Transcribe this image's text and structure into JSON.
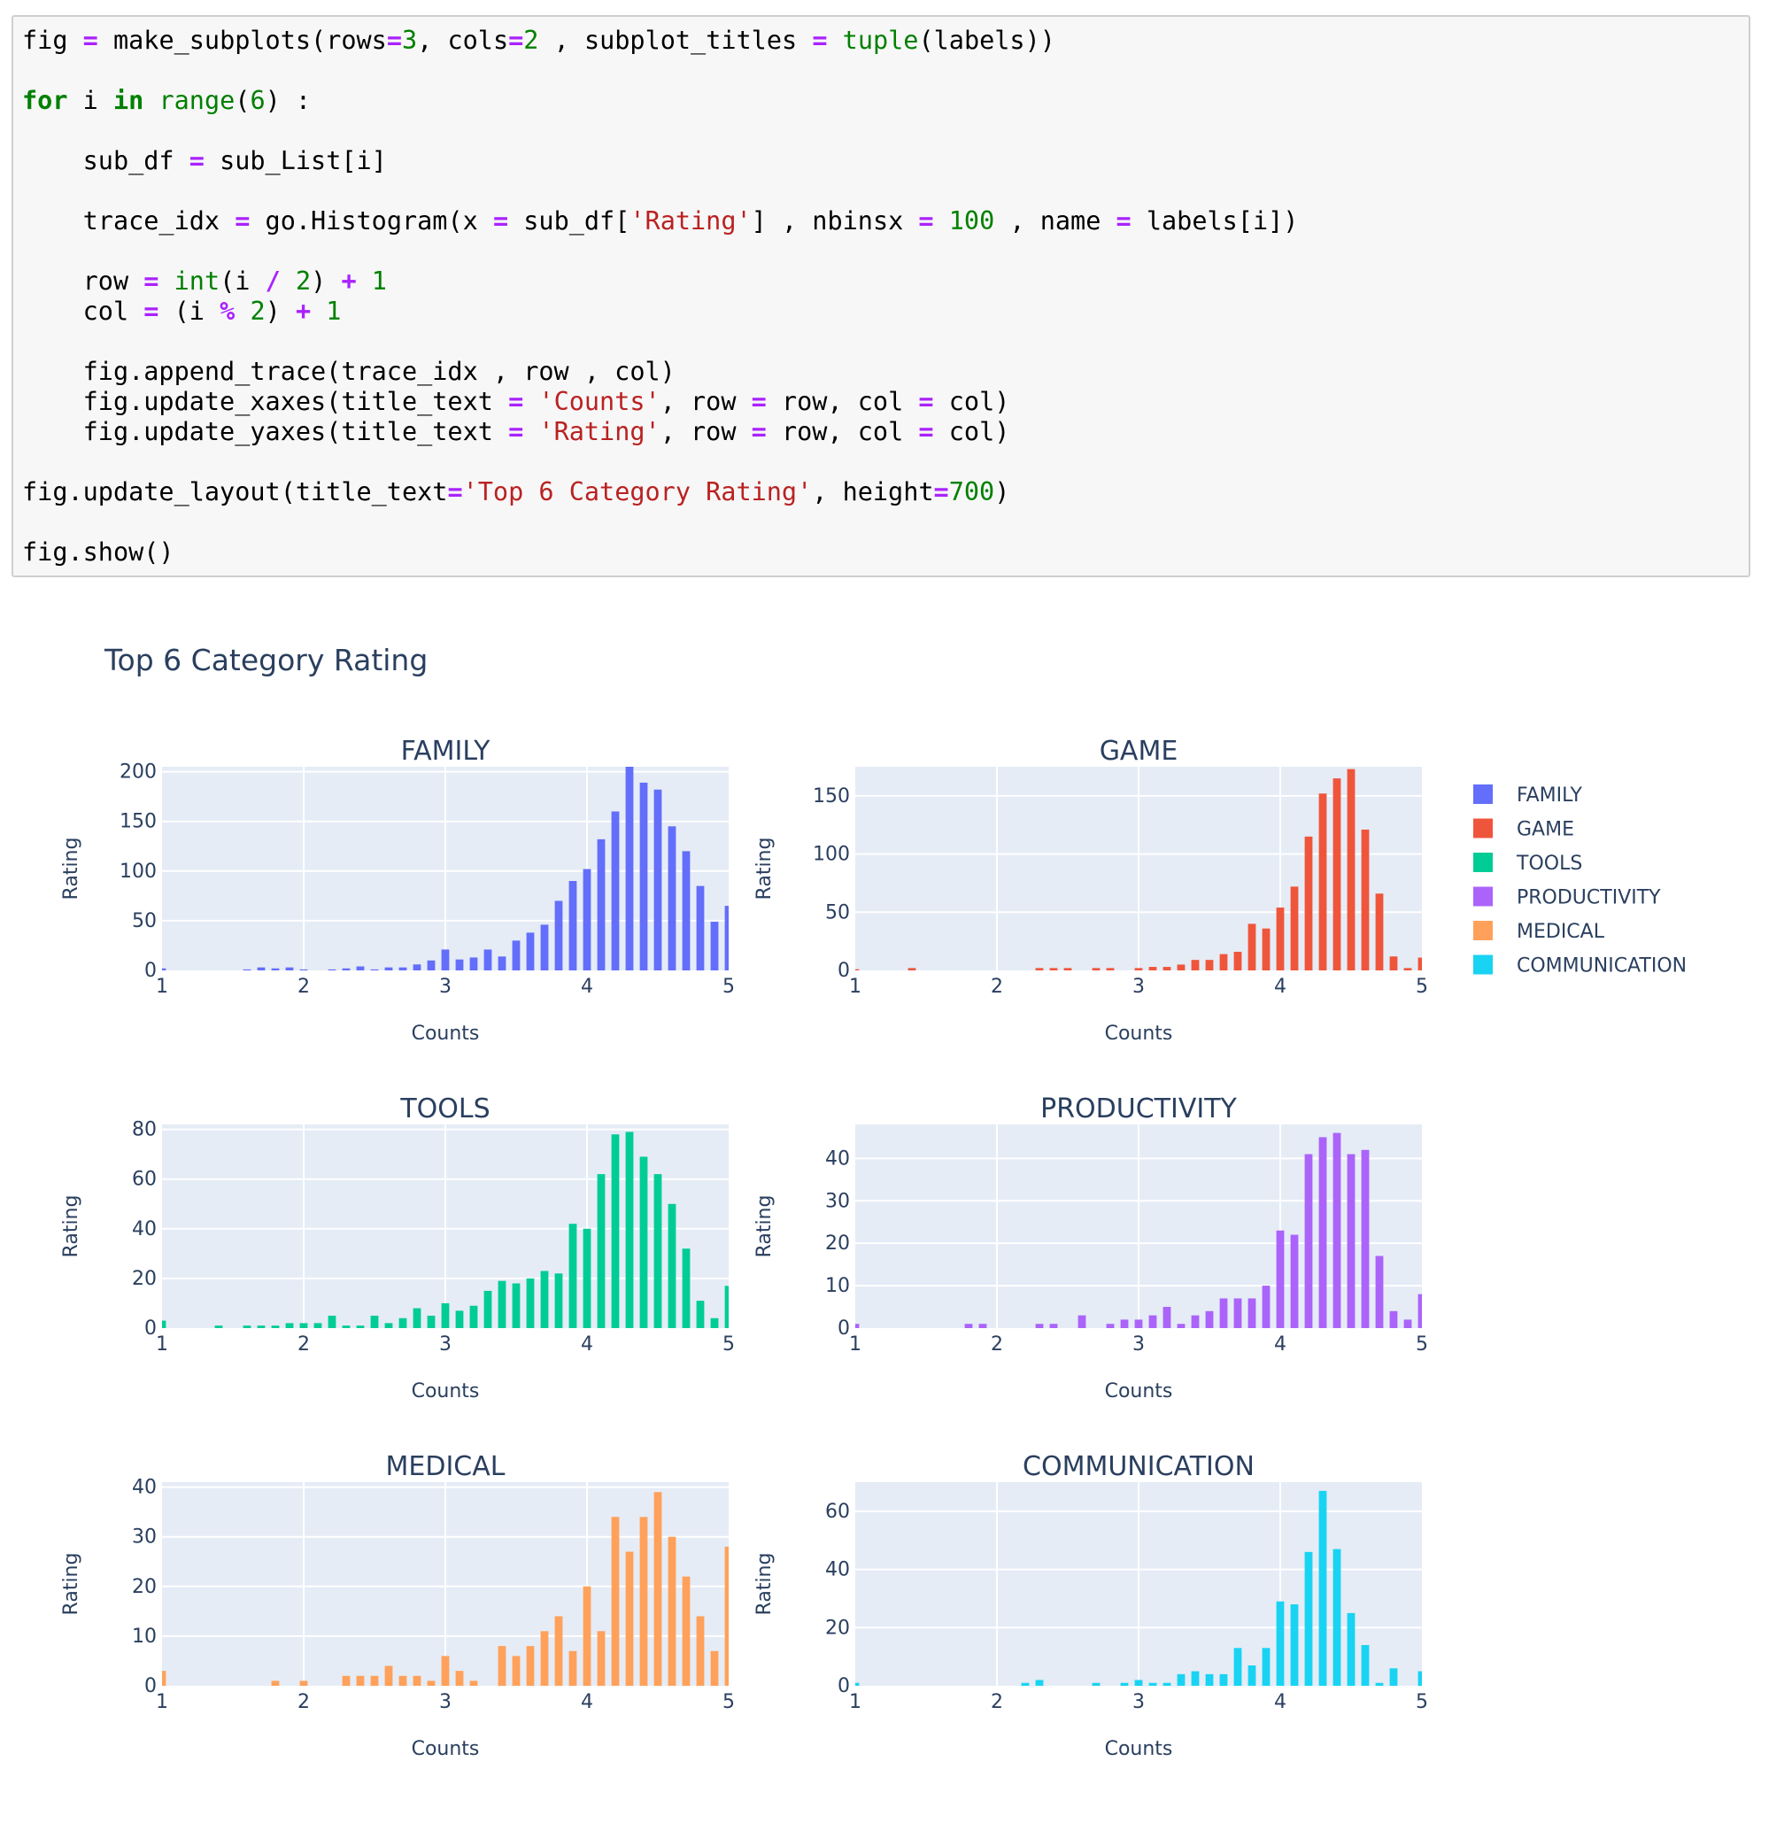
{
  "code": {
    "lines": [
      [
        [
          "t",
          "fig "
        ],
        [
          "op",
          "="
        ],
        [
          "t",
          " make_subplots(rows"
        ],
        [
          "op",
          "="
        ],
        [
          "num",
          "3"
        ],
        [
          "t",
          ", cols"
        ],
        [
          "op",
          "="
        ],
        [
          "num",
          "2"
        ],
        [
          "t",
          " , subplot_titles "
        ],
        [
          "op",
          "="
        ],
        [
          "t",
          " "
        ],
        [
          "bi",
          "tuple"
        ],
        [
          "t",
          "(labels))"
        ]
      ],
      [],
      [
        [
          "kw",
          "for"
        ],
        [
          "t",
          " i "
        ],
        [
          "kw",
          "in"
        ],
        [
          "t",
          " "
        ],
        [
          "bi",
          "range"
        ],
        [
          "t",
          "("
        ],
        [
          "num",
          "6"
        ],
        [
          "t",
          ") :"
        ]
      ],
      [],
      [
        [
          "t",
          "    sub_df "
        ],
        [
          "op",
          "="
        ],
        [
          "t",
          " sub_List[i]"
        ]
      ],
      [],
      [
        [
          "t",
          "    trace_idx "
        ],
        [
          "op",
          "="
        ],
        [
          "t",
          " go.Histogram(x "
        ],
        [
          "op",
          "="
        ],
        [
          "t",
          " sub_df["
        ],
        [
          "str",
          "'Rating'"
        ],
        [
          "t",
          "] , nbinsx "
        ],
        [
          "op",
          "="
        ],
        [
          "t",
          " "
        ],
        [
          "num",
          "100"
        ],
        [
          "t",
          " , name "
        ],
        [
          "op",
          "="
        ],
        [
          "t",
          " labels[i])"
        ]
      ],
      [],
      [
        [
          "t",
          "    row "
        ],
        [
          "op",
          "="
        ],
        [
          "t",
          " "
        ],
        [
          "bi",
          "int"
        ],
        [
          "t",
          "(i "
        ],
        [
          "op",
          "/"
        ],
        [
          "t",
          " "
        ],
        [
          "num",
          "2"
        ],
        [
          "t",
          ") "
        ],
        [
          "op",
          "+"
        ],
        [
          "t",
          " "
        ],
        [
          "num",
          "1"
        ]
      ],
      [
        [
          "t",
          "    col "
        ],
        [
          "op",
          "="
        ],
        [
          "t",
          " (i "
        ],
        [
          "op",
          "%"
        ],
        [
          "t",
          " "
        ],
        [
          "num",
          "2"
        ],
        [
          "t",
          ") "
        ],
        [
          "op",
          "+"
        ],
        [
          "t",
          " "
        ],
        [
          "num",
          "1"
        ]
      ],
      [],
      [
        [
          "t",
          "    fig.append_trace(trace_idx , row , col)"
        ]
      ],
      [
        [
          "t",
          "    fig.update_xaxes(title_text "
        ],
        [
          "op",
          "="
        ],
        [
          "t",
          " "
        ],
        [
          "str",
          "'Counts'"
        ],
        [
          "t",
          ", row "
        ],
        [
          "op",
          "="
        ],
        [
          "t",
          " row, col "
        ],
        [
          "op",
          "="
        ],
        [
          "t",
          " col)"
        ]
      ],
      [
        [
          "t",
          "    fig.update_yaxes(title_text "
        ],
        [
          "op",
          "="
        ],
        [
          "t",
          " "
        ],
        [
          "str",
          "'Rating'"
        ],
        [
          "t",
          ", row "
        ],
        [
          "op",
          "="
        ],
        [
          "t",
          " row, col "
        ],
        [
          "op",
          "="
        ],
        [
          "t",
          " col)"
        ]
      ],
      [],
      [
        [
          "t",
          "fig.update_layout(title_text"
        ],
        [
          "op",
          "="
        ],
        [
          "str",
          "'Top 6 Category Rating'"
        ],
        [
          "t",
          ", height"
        ],
        [
          "op",
          "="
        ],
        [
          "num",
          "700"
        ],
        [
          "t",
          ")"
        ]
      ],
      [],
      [
        [
          "t",
          "fig.show()"
        ]
      ]
    ]
  },
  "chart_data": {
    "type": "bar",
    "title": "Top 6 Category Rating",
    "grid": true,
    "legend_position": "top-right",
    "bin_width": 0.1,
    "subplots": [
      {
        "name": "FAMILY",
        "color": "#636efa",
        "xlabel": "Counts",
        "ylabel": "Rating",
        "xlim": [
          1,
          5
        ],
        "ylim": [
          0,
          205
        ],
        "xticks": [
          1,
          2,
          3,
          4,
          5
        ],
        "yticks": [
          0,
          50,
          100,
          150,
          200
        ],
        "bins": [
          [
            1.0,
            2
          ],
          [
            1.6,
            1
          ],
          [
            1.7,
            3
          ],
          [
            1.8,
            2
          ],
          [
            1.9,
            3
          ],
          [
            2.0,
            1
          ],
          [
            2.2,
            1
          ],
          [
            2.3,
            2
          ],
          [
            2.4,
            4
          ],
          [
            2.5,
            1
          ],
          [
            2.6,
            3
          ],
          [
            2.7,
            3
          ],
          [
            2.8,
            6
          ],
          [
            2.9,
            10
          ],
          [
            3.0,
            21
          ],
          [
            3.1,
            11
          ],
          [
            3.2,
            13
          ],
          [
            3.3,
            21
          ],
          [
            3.4,
            14
          ],
          [
            3.5,
            30
          ],
          [
            3.6,
            38
          ],
          [
            3.7,
            46
          ],
          [
            3.8,
            70
          ],
          [
            3.9,
            90
          ],
          [
            4.0,
            102
          ],
          [
            4.1,
            132
          ],
          [
            4.2,
            160
          ],
          [
            4.3,
            205
          ],
          [
            4.4,
            189
          ],
          [
            4.5,
            182
          ],
          [
            4.6,
            145
          ],
          [
            4.7,
            120
          ],
          [
            4.8,
            85
          ],
          [
            4.9,
            49
          ],
          [
            5.0,
            65
          ]
        ]
      },
      {
        "name": "GAME",
        "color": "#ef553b",
        "xlabel": "Counts",
        "ylabel": "Rating",
        "xlim": [
          1,
          5
        ],
        "ylim": [
          0,
          175
        ],
        "xticks": [
          1,
          2,
          3,
          4,
          5
        ],
        "yticks": [
          0,
          50,
          100,
          150
        ],
        "bins": [
          [
            1.0,
            1
          ],
          [
            1.4,
            2
          ],
          [
            2.3,
            2
          ],
          [
            2.4,
            2
          ],
          [
            2.5,
            2
          ],
          [
            2.7,
            2
          ],
          [
            2.8,
            2
          ],
          [
            3.0,
            2
          ],
          [
            3.1,
            3
          ],
          [
            3.2,
            3
          ],
          [
            3.3,
            5
          ],
          [
            3.4,
            9
          ],
          [
            3.5,
            9
          ],
          [
            3.6,
            14
          ],
          [
            3.7,
            16
          ],
          [
            3.8,
            40
          ],
          [
            3.9,
            36
          ],
          [
            4.0,
            54
          ],
          [
            4.1,
            72
          ],
          [
            4.2,
            115
          ],
          [
            4.3,
            152
          ],
          [
            4.4,
            165
          ],
          [
            4.5,
            173
          ],
          [
            4.6,
            121
          ],
          [
            4.7,
            66
          ],
          [
            4.8,
            12
          ],
          [
            4.9,
            2
          ],
          [
            5.0,
            11
          ]
        ]
      },
      {
        "name": "TOOLS",
        "color": "#00cc96",
        "xlabel": "Counts",
        "ylabel": "Rating",
        "xlim": [
          1,
          5
        ],
        "ylim": [
          0,
          82
        ],
        "xticks": [
          1,
          2,
          3,
          4,
          5
        ],
        "yticks": [
          0,
          20,
          40,
          60,
          80
        ],
        "bins": [
          [
            1.0,
            3
          ],
          [
            1.4,
            1
          ],
          [
            1.6,
            1
          ],
          [
            1.7,
            1
          ],
          [
            1.8,
            1
          ],
          [
            1.9,
            2
          ],
          [
            2.0,
            2
          ],
          [
            2.1,
            2
          ],
          [
            2.2,
            5
          ],
          [
            2.3,
            1
          ],
          [
            2.4,
            1
          ],
          [
            2.5,
            5
          ],
          [
            2.6,
            2
          ],
          [
            2.7,
            4
          ],
          [
            2.8,
            8
          ],
          [
            2.9,
            5
          ],
          [
            3.0,
            10
          ],
          [
            3.1,
            7
          ],
          [
            3.2,
            9
          ],
          [
            3.3,
            15
          ],
          [
            3.4,
            19
          ],
          [
            3.5,
            18
          ],
          [
            3.6,
            20
          ],
          [
            3.7,
            23
          ],
          [
            3.8,
            22
          ],
          [
            3.9,
            42
          ],
          [
            4.0,
            40
          ],
          [
            4.1,
            62
          ],
          [
            4.2,
            78
          ],
          [
            4.3,
            79
          ],
          [
            4.4,
            69
          ],
          [
            4.5,
            62
          ],
          [
            4.6,
            50
          ],
          [
            4.7,
            32
          ],
          [
            4.8,
            11
          ],
          [
            4.9,
            4
          ],
          [
            5.0,
            17
          ]
        ]
      },
      {
        "name": "PRODUCTIVITY",
        "color": "#ab63fa",
        "xlabel": "Counts",
        "ylabel": "Rating",
        "xlim": [
          1,
          5
        ],
        "ylim": [
          0,
          48
        ],
        "xticks": [
          1,
          2,
          3,
          4,
          5
        ],
        "yticks": [
          0,
          10,
          20,
          30,
          40
        ],
        "bins": [
          [
            1.0,
            1
          ],
          [
            1.8,
            1
          ],
          [
            1.9,
            1
          ],
          [
            2.3,
            1
          ],
          [
            2.4,
            1
          ],
          [
            2.6,
            3
          ],
          [
            2.8,
            1
          ],
          [
            2.9,
            2
          ],
          [
            3.0,
            2
          ],
          [
            3.1,
            3
          ],
          [
            3.2,
            5
          ],
          [
            3.3,
            1
          ],
          [
            3.4,
            3
          ],
          [
            3.5,
            4
          ],
          [
            3.6,
            7
          ],
          [
            3.7,
            7
          ],
          [
            3.8,
            7
          ],
          [
            3.9,
            10
          ],
          [
            4.0,
            23
          ],
          [
            4.1,
            22
          ],
          [
            4.2,
            41
          ],
          [
            4.3,
            45
          ],
          [
            4.4,
            46
          ],
          [
            4.5,
            41
          ],
          [
            4.6,
            42
          ],
          [
            4.7,
            17
          ],
          [
            4.8,
            4
          ],
          [
            4.9,
            2
          ],
          [
            5.0,
            8
          ]
        ]
      },
      {
        "name": "MEDICAL",
        "color": "#ffa15a",
        "xlabel": "Counts",
        "ylabel": "Rating",
        "xlim": [
          1,
          5
        ],
        "ylim": [
          0,
          41
        ],
        "xticks": [
          1,
          2,
          3,
          4,
          5
        ],
        "yticks": [
          0,
          10,
          20,
          30,
          40
        ],
        "bins": [
          [
            1.0,
            3
          ],
          [
            1.8,
            1
          ],
          [
            2.0,
            1
          ],
          [
            2.3,
            2
          ],
          [
            2.4,
            2
          ],
          [
            2.5,
            2
          ],
          [
            2.6,
            4
          ],
          [
            2.7,
            2
          ],
          [
            2.8,
            2
          ],
          [
            2.9,
            1
          ],
          [
            3.0,
            6
          ],
          [
            3.1,
            3
          ],
          [
            3.2,
            1
          ],
          [
            3.4,
            8
          ],
          [
            3.5,
            6
          ],
          [
            3.6,
            8
          ],
          [
            3.7,
            11
          ],
          [
            3.8,
            14
          ],
          [
            3.9,
            7
          ],
          [
            4.0,
            20
          ],
          [
            4.1,
            11
          ],
          [
            4.2,
            34
          ],
          [
            4.3,
            27
          ],
          [
            4.4,
            34
          ],
          [
            4.5,
            39
          ],
          [
            4.6,
            30
          ],
          [
            4.7,
            22
          ],
          [
            4.8,
            14
          ],
          [
            4.9,
            7
          ],
          [
            5.0,
            28
          ]
        ]
      },
      {
        "name": "COMMUNICATION",
        "color": "#19d3f3",
        "xlabel": "Counts",
        "ylabel": "Rating",
        "xlim": [
          1,
          5
        ],
        "ylim": [
          0,
          70
        ],
        "xticks": [
          1,
          2,
          3,
          4,
          5
        ],
        "yticks": [
          0,
          20,
          40,
          60
        ],
        "bins": [
          [
            1.0,
            1
          ],
          [
            2.2,
            1
          ],
          [
            2.3,
            2
          ],
          [
            2.7,
            1
          ],
          [
            2.9,
            1
          ],
          [
            3.0,
            2
          ],
          [
            3.1,
            1
          ],
          [
            3.2,
            1
          ],
          [
            3.3,
            4
          ],
          [
            3.4,
            5
          ],
          [
            3.5,
            4
          ],
          [
            3.6,
            4
          ],
          [
            3.7,
            13
          ],
          [
            3.8,
            7
          ],
          [
            3.9,
            13
          ],
          [
            4.0,
            29
          ],
          [
            4.1,
            28
          ],
          [
            4.2,
            46
          ],
          [
            4.3,
            67
          ],
          [
            4.4,
            47
          ],
          [
            4.5,
            25
          ],
          [
            4.6,
            14
          ],
          [
            4.7,
            1
          ],
          [
            4.8,
            6
          ],
          [
            5.0,
            5
          ]
        ]
      }
    ]
  }
}
